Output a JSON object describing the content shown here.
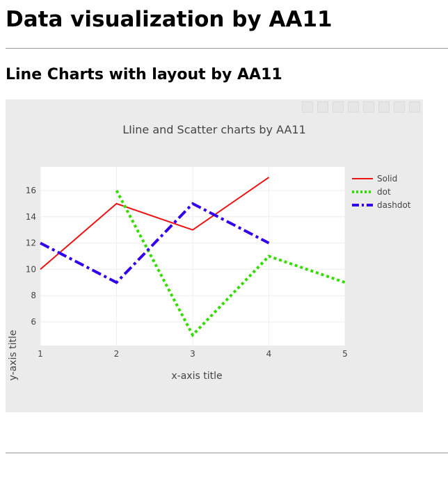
{
  "page": {
    "heading": "Data visualization by AA11",
    "subheading": "Line Charts with layout by AA11"
  },
  "colors": {
    "chart_background": "#ebebeb",
    "plot_background": "#ffffff",
    "grid": "#eeeeee",
    "text": "#444444"
  },
  "chart_data": {
    "type": "line",
    "title": "LIine and Scatter charts by AA11",
    "xlabel": "x-axis title",
    "ylabel": "y-axis title",
    "xlim": [
      1,
      5
    ],
    "ylim": [
      4.2,
      17.8
    ],
    "xticks": [
      1,
      2,
      3,
      4,
      5
    ],
    "yticks": [
      6,
      8,
      10,
      12,
      14,
      16
    ],
    "grid": true,
    "legend_position": "top-right",
    "series": [
      {
        "name": "Solid",
        "x": [
          1,
          2,
          3,
          4
        ],
        "y": [
          10,
          15,
          13,
          17
        ],
        "color": "#ee1111",
        "dash": "solid",
        "width": 2
      },
      {
        "name": "dot",
        "x": [
          2,
          3,
          4,
          5
        ],
        "y": [
          16,
          5,
          11,
          9
        ],
        "color": "#33dd00",
        "dash": "dot",
        "width": 4
      },
      {
        "name": "dashdot",
        "x": [
          1,
          2,
          3,
          4
        ],
        "y": [
          12,
          9,
          15,
          12
        ],
        "color": "#3300ee",
        "dash": "dashdot",
        "width": 4
      }
    ]
  }
}
